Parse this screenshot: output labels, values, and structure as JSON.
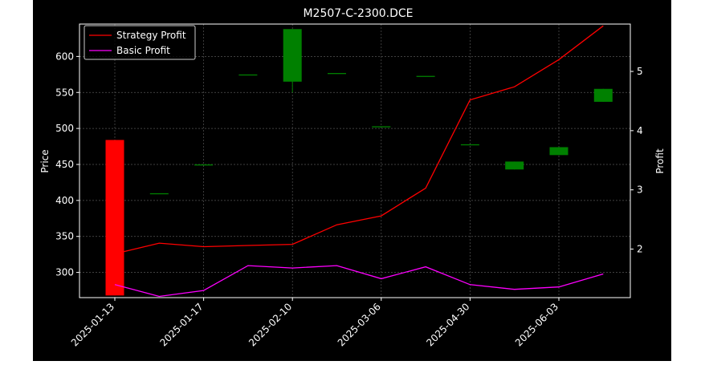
{
  "chart_data": {
    "type": "candlestick+line",
    "title": "M2507-C-2300.DCE",
    "ylabel": "Price",
    "y2label": "Profit",
    "ylim": [
      265,
      645
    ],
    "y2lim": [
      1.18,
      5.8
    ],
    "yticks": [
      300,
      350,
      400,
      450,
      500,
      550,
      600
    ],
    "y2ticks": [
      2,
      3,
      4,
      5
    ],
    "x_tick_labels": [
      "2025-01-13",
      "2025-01-17",
      "2025-02-10",
      "2025-03-06",
      "2025-04-30",
      "2025-06-03"
    ],
    "x_tick_index": [
      0,
      2,
      4,
      6,
      8,
      10
    ],
    "x_count": 12,
    "grid": true,
    "legend_position": "top-left",
    "colors": {
      "background": "#000000",
      "axes": "#ffffff",
      "grid": "#555555",
      "up": "#008000",
      "down": "#ff0000",
      "strategy": "#ff0000",
      "basic": "#ff00ff"
    },
    "candles": [
      {
        "open": 484,
        "close": 268,
        "high": 484,
        "low": 268
      },
      {
        "open": 410,
        "close": 410,
        "high": 410,
        "low": 410
      },
      {
        "open": 450,
        "close": 450,
        "high": 450,
        "low": 450
      },
      {
        "open": 575,
        "close": 575,
        "high": 575,
        "low": 575
      },
      {
        "open": 565,
        "close": 638,
        "high": 638,
        "low": 550
      },
      {
        "open": 577,
        "close": 577,
        "high": 577,
        "low": 577
      },
      {
        "open": 503,
        "close": 503,
        "high": 503,
        "low": 503
      },
      {
        "open": 573,
        "close": 573,
        "high": 573,
        "low": 573
      },
      {
        "open": 478,
        "close": 478,
        "high": 478,
        "low": 478
      },
      {
        "open": 443,
        "close": 454,
        "high": 454,
        "low": 443
      },
      {
        "open": 463,
        "close": 474,
        "high": 474,
        "low": 463
      },
      {
        "open": 537,
        "close": 555,
        "high": 555,
        "low": 537
      }
    ],
    "series": [
      {
        "name": "Strategy Profit",
        "values": [
          1.92,
          2.1,
          2.04,
          2.06,
          2.08,
          2.41,
          2.56,
          3.03,
          4.52,
          4.74,
          5.2,
          5.77
        ]
      },
      {
        "name": "Basic Profit",
        "values": [
          1.4,
          1.2,
          1.3,
          1.72,
          1.68,
          1.72,
          1.5,
          1.7,
          1.4,
          1.32,
          1.36,
          1.58
        ]
      }
    ]
  }
}
